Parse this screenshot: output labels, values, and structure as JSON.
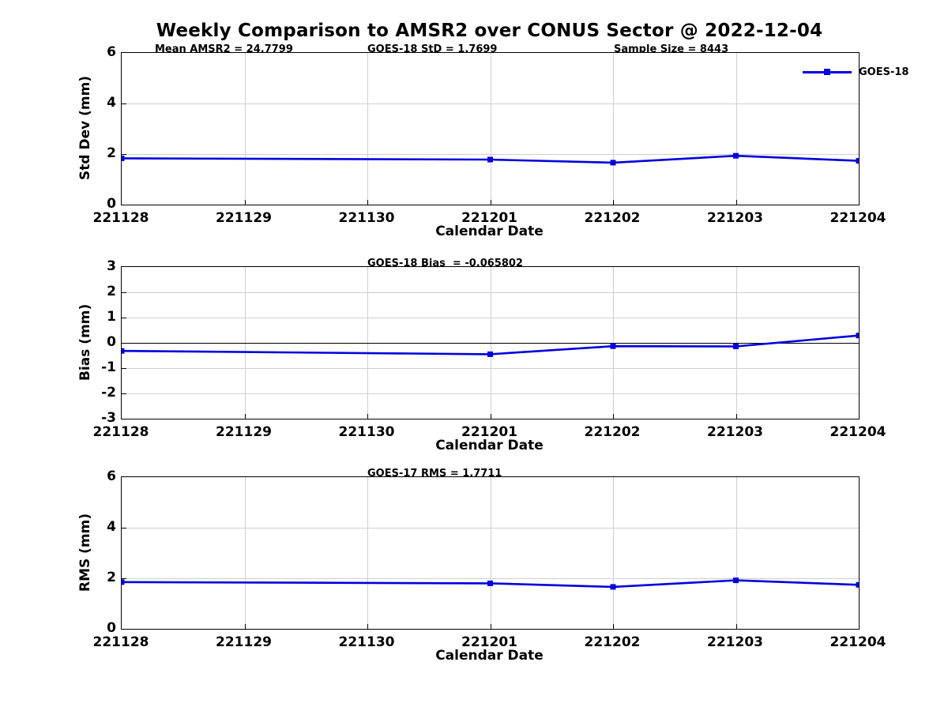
{
  "page": {
    "title": "Weekly Comparison to AMSR2 over CONUS Sector @ 2022-12-04"
  },
  "legend": {
    "label": "GOES-18",
    "position": "top-right-inside"
  },
  "colors": {
    "line": "#0000DD",
    "marker": "#0000DD",
    "grid": "#CFCFCF",
    "frame": "#000000",
    "text": "#000000",
    "background": "#FFFFFF"
  },
  "chart_data": [
    {
      "type": "line",
      "panel": "std-dev",
      "ylabel": "Std Dev (mm)",
      "xlabel": "Calendar Date",
      "ylim": [
        0,
        6
      ],
      "y_ticks": [
        0,
        2,
        4,
        6
      ],
      "x_ticks": [
        "221128",
        "221129",
        "221130",
        "221201",
        "221202",
        "221203",
        "221204"
      ],
      "grid": true,
      "zero_line": false,
      "annotations": [
        "Mean AMSR2 = 24.7799",
        "GOES-18 StD = 1.7699",
        "Sample Size = 8443"
      ],
      "series": [
        {
          "name": "GOES-18",
          "marker": "square",
          "points": [
            [
              "221128",
              1.83
            ],
            [
              "221201",
              1.78
            ],
            [
              "221202",
              1.66
            ],
            [
              "221203",
              1.93
            ],
            [
              "221204",
              1.73
            ]
          ]
        }
      ]
    },
    {
      "type": "line",
      "panel": "bias",
      "ylabel": "Bias (mm)",
      "xlabel": "Calendar Date",
      "ylim": [
        -3,
        3
      ],
      "y_ticks": [
        3,
        2,
        1,
        0,
        -1,
        -2,
        -3
      ],
      "x_ticks": [
        "221128",
        "221129",
        "221130",
        "221201",
        "221202",
        "221203",
        "221204"
      ],
      "grid": true,
      "zero_line": true,
      "annotations": [
        "GOES-18 Bias  = -0.065802"
      ],
      "series": [
        {
          "name": "GOES-18",
          "marker": "square",
          "points": [
            [
              "221128",
              -0.32
            ],
            [
              "221201",
              -0.45
            ],
            [
              "221202",
              -0.13
            ],
            [
              "221203",
              -0.14
            ],
            [
              "221204",
              0.29
            ]
          ]
        }
      ]
    },
    {
      "type": "line",
      "panel": "rms",
      "ylabel": "RMS (mm)",
      "xlabel": "Calendar Date",
      "ylim": [
        0,
        6
      ],
      "y_ticks": [
        0,
        2,
        4,
        6
      ],
      "x_ticks": [
        "221128",
        "221129",
        "221130",
        "221201",
        "221202",
        "221203",
        "221204"
      ],
      "grid": true,
      "zero_line": false,
      "annotations": [
        "GOES-17 RMS = 1.7711"
      ],
      "series": [
        {
          "name": "GOES-18",
          "marker": "square",
          "points": [
            [
              "221128",
              1.85
            ],
            [
              "221201",
              1.8
            ],
            [
              "221202",
              1.66
            ],
            [
              "221203",
              1.92
            ],
            [
              "221204",
              1.74
            ]
          ]
        }
      ]
    }
  ]
}
